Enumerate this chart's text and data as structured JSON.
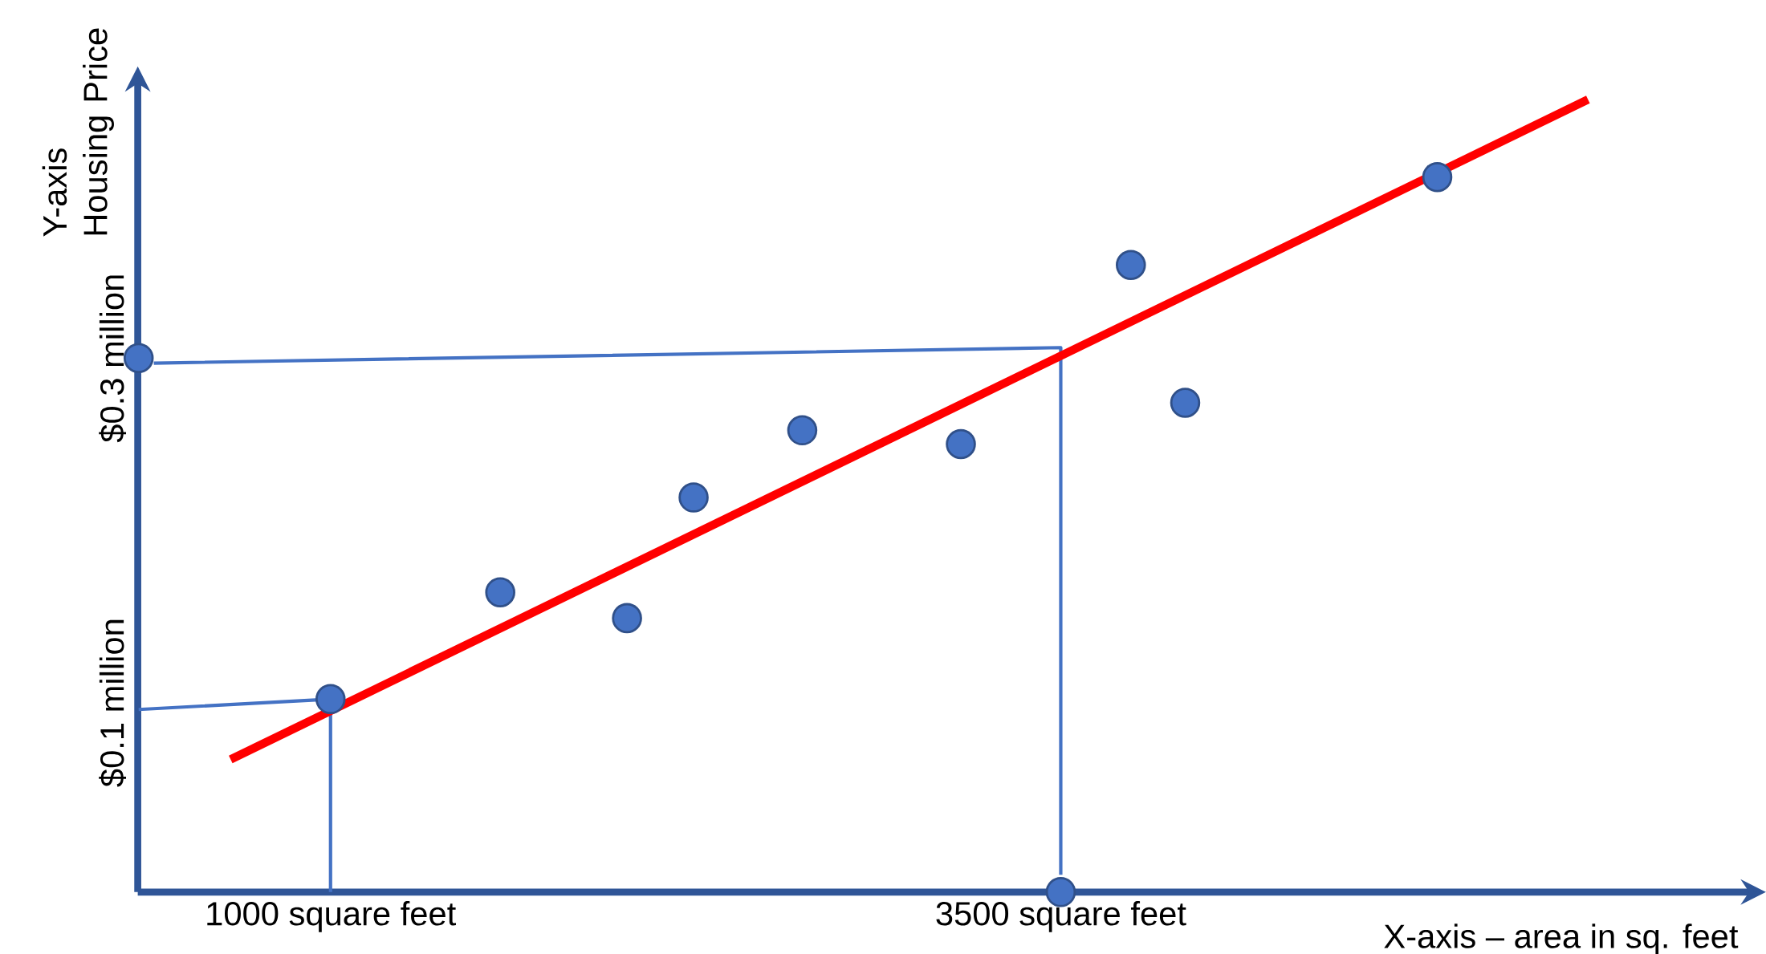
{
  "chart_data": {
    "type": "scatter",
    "xlabel": "X-axis – area in sq. feet",
    "ylabel": "Y-axis Housing Price",
    "xlim": [
      340,
      5860
    ],
    "ylim": [
      -0.01,
      0.46
    ],
    "xticks": [
      {
        "value": 1000,
        "label": "1000 square feet"
      },
      {
        "value": 3500,
        "label": "3500 square feet"
      }
    ],
    "yticks": [
      {
        "value": 0.1,
        "label": "$0.1 million"
      },
      {
        "value": 0.3,
        "label": "$0.3 million"
      }
    ],
    "series": [
      {
        "type": "line",
        "color": "#4472c4",
        "marker": "none",
        "x": [
          395,
          3500,
          3500
        ],
        "values": [
          0.297,
          0.306,
          0.0
        ]
      },
      {
        "type": "line",
        "color": "#4472c4",
        "marker": "none",
        "x": [
          343,
          1000,
          1000
        ],
        "values": [
          0.096,
          0.102,
          -0.01
        ]
      },
      {
        "type": "line",
        "color": "#ff0000",
        "marker": "none",
        "x": [
          658,
          5305
        ],
        "values": [
          0.067,
          0.45
        ]
      },
      {
        "color": "#4472c4",
        "marker": "circle",
        "x": [
          1000,
          1581,
          2015,
          2243,
          2615,
          3158,
          3740,
          3926,
          4789
        ],
        "values": [
          0.102,
          0.164,
          0.149,
          0.219,
          0.258,
          0.25,
          0.354,
          0.274,
          0.405
        ]
      },
      {
        "color": "#4472c4",
        "marker": "circle",
        "x": [
          343,
          3500
        ],
        "values": [
          0.3,
          -0.01
        ]
      }
    ]
  }
}
